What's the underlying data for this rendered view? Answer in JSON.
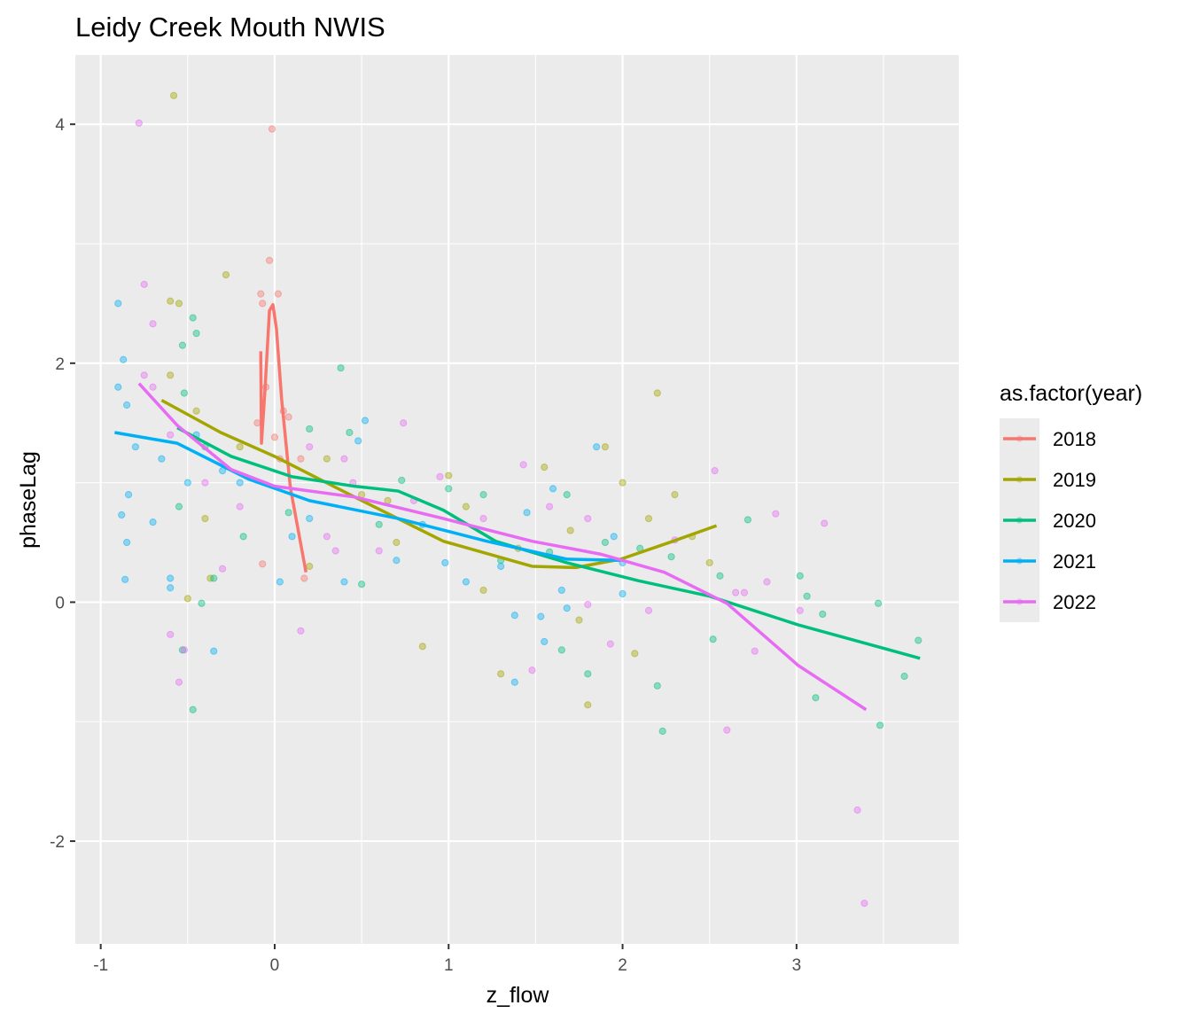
{
  "chart_data": {
    "type": "scatter",
    "title": "Leidy Creek Mouth NWIS",
    "xlabel": "z_flow",
    "ylabel": "phaseLag",
    "xlim": [
      -1.146,
      3.933
    ],
    "ylim": [
      -2.86,
      4.58
    ],
    "xticks": [
      -1,
      0,
      1,
      2,
      3
    ],
    "yticks": [
      -2,
      0,
      2,
      4
    ],
    "grid": true,
    "legend": {
      "title": "as.factor(year)",
      "placement": "right"
    },
    "series": [
      {
        "name": "2018",
        "color": "#F8766D",
        "points": [
          [
            -0.015,
            3.96
          ],
          [
            -0.03,
            2.86
          ],
          [
            -0.08,
            2.58
          ],
          [
            0.02,
            2.58
          ],
          [
            -0.07,
            2.5
          ],
          [
            0.17,
            0.2
          ],
          [
            -0.07,
            0.32
          ],
          [
            0.08,
            1.55
          ],
          [
            0.05,
            1.6
          ],
          [
            -0.1,
            1.5
          ],
          [
            0.0,
            1.38
          ],
          [
            0.03,
            1.2
          ],
          [
            0.15,
            1.2
          ],
          [
            -0.05,
            1.8
          ]
        ],
        "smooth": [
          [
            -0.08,
            2.1
          ],
          [
            -0.076,
            1.33
          ],
          [
            -0.056,
            1.77
          ],
          [
            -0.03,
            2.44
          ],
          [
            -0.01,
            2.49
          ],
          [
            0.01,
            2.29
          ],
          [
            0.04,
            1.7
          ],
          [
            0.09,
            0.96
          ],
          [
            0.18,
            0.25
          ]
        ]
      },
      {
        "name": "2019",
        "color": "#A3A500",
        "points": [
          [
            -0.58,
            4.24
          ],
          [
            -0.28,
            2.74
          ],
          [
            -0.6,
            2.52
          ],
          [
            -0.55,
            2.5
          ],
          [
            2.2,
            1.75
          ],
          [
            1.9,
            1.3
          ],
          [
            2.0,
            1.0
          ],
          [
            1.55,
            1.13
          ],
          [
            0.85,
            -0.37
          ],
          [
            1.8,
            -0.86
          ],
          [
            2.07,
            -0.43
          ],
          [
            1.3,
            -0.6
          ],
          [
            2.5,
            0.33
          ],
          [
            2.3,
            0.9
          ],
          [
            2.15,
            0.7
          ],
          [
            1.2,
            0.1
          ],
          [
            1.0,
            1.06
          ],
          [
            0.7,
            0.5
          ],
          [
            -0.4,
            0.7
          ],
          [
            -0.5,
            0.03
          ],
          [
            -0.37,
            0.2
          ],
          [
            0.2,
            0.3
          ],
          [
            1.75,
            -0.15
          ],
          [
            1.1,
            0.8
          ],
          [
            -0.2,
            1.3
          ],
          [
            -0.6,
            1.9
          ],
          [
            -0.45,
            1.6
          ],
          [
            0.3,
            1.2
          ],
          [
            0.5,
            0.9
          ],
          [
            0.65,
            0.85
          ],
          [
            1.4,
            0.45
          ],
          [
            1.7,
            0.6
          ],
          [
            2.4,
            0.55
          ]
        ],
        "smooth": [
          [
            -0.65,
            1.69
          ],
          [
            -0.31,
            1.42
          ],
          [
            0,
            1.22
          ],
          [
            0.46,
            0.88
          ],
          [
            0.97,
            0.51
          ],
          [
            1.48,
            0.3
          ],
          [
            1.73,
            0.29
          ],
          [
            1.99,
            0.36
          ],
          [
            2.29,
            0.51
          ],
          [
            2.54,
            0.64
          ]
        ]
      },
      {
        "name": "2020",
        "color": "#00BF7D",
        "points": [
          [
            0.38,
            1.96
          ],
          [
            -0.47,
            -0.9
          ],
          [
            -0.42,
            -0.01
          ],
          [
            -0.53,
            -0.4
          ],
          [
            2.2,
            -0.7
          ],
          [
            2.23,
            -1.08
          ],
          [
            3.48,
            -1.03
          ],
          [
            3.62,
            -0.62
          ],
          [
            3.7,
            -0.32
          ],
          [
            3.47,
            -0.01
          ],
          [
            3.02,
            0.22
          ],
          [
            3.06,
            0.05
          ],
          [
            3.15,
            -0.1
          ],
          [
            3.11,
            -0.8
          ],
          [
            2.72,
            0.69
          ],
          [
            2.52,
            -0.31
          ],
          [
            2.56,
            0.22
          ],
          [
            1.68,
            0.9
          ],
          [
            1.2,
            0.9
          ],
          [
            1.0,
            0.95
          ],
          [
            0.73,
            1.02
          ],
          [
            0.43,
            1.42
          ],
          [
            0.2,
            1.45
          ],
          [
            -0.47,
            2.38
          ],
          [
            -0.53,
            2.15
          ],
          [
            -0.45,
            2.25
          ],
          [
            -0.52,
            1.75
          ],
          [
            -0.4,
            1.3
          ],
          [
            1.8,
            -0.6
          ],
          [
            1.65,
            -0.4
          ],
          [
            0.5,
            0.15
          ],
          [
            -0.35,
            0.2
          ],
          [
            -0.55,
            0.8
          ],
          [
            -0.18,
            0.55
          ],
          [
            0.08,
            0.75
          ],
          [
            0.6,
            0.65
          ],
          [
            1.3,
            0.35
          ],
          [
            1.9,
            0.5
          ],
          [
            2.1,
            0.45
          ],
          [
            2.28,
            0.38
          ],
          [
            1.58,
            0.42
          ]
        ],
        "smooth": [
          [
            -0.56,
            1.46
          ],
          [
            -0.25,
            1.22
          ],
          [
            0.1,
            1.05
          ],
          [
            0.46,
            0.97
          ],
          [
            0.71,
            0.93
          ],
          [
            0.97,
            0.77
          ],
          [
            1.27,
            0.51
          ],
          [
            1.68,
            0.33
          ],
          [
            2.09,
            0.18
          ],
          [
            2.5,
            0.05
          ],
          [
            3.01,
            -0.19
          ],
          [
            3.71,
            -0.47
          ]
        ]
      },
      {
        "name": "2021",
        "color": "#00B0F6",
        "points": [
          [
            -0.9,
            2.5
          ],
          [
            -0.87,
            2.03
          ],
          [
            -0.86,
            0.19
          ],
          [
            -0.6,
            0.2
          ],
          [
            -0.6,
            0.12
          ],
          [
            -0.35,
            -0.41
          ],
          [
            0.03,
            0.17
          ],
          [
            0.4,
            0.17
          ],
          [
            0.98,
            0.33
          ],
          [
            1.1,
            0.17
          ],
          [
            1.38,
            -0.11
          ],
          [
            1.38,
            -0.67
          ],
          [
            1.53,
            -0.12
          ],
          [
            1.55,
            -0.33
          ],
          [
            1.65,
            0.1
          ],
          [
            1.68,
            -0.05
          ],
          [
            1.6,
            0.95
          ],
          [
            1.3,
            0.3
          ],
          [
            1.85,
            1.3
          ],
          [
            1.95,
            0.55
          ],
          [
            2.0,
            0.07
          ],
          [
            0.52,
            1.52
          ],
          [
            0.48,
            1.35
          ],
          [
            -0.85,
            0.5
          ],
          [
            -0.88,
            0.73
          ],
          [
            -0.84,
            0.9
          ],
          [
            -0.8,
            1.3
          ],
          [
            -0.7,
            0.67
          ],
          [
            -0.85,
            1.65
          ],
          [
            -0.9,
            1.8
          ],
          [
            -0.65,
            1.2
          ],
          [
            -0.5,
            1.0
          ],
          [
            -0.45,
            1.4
          ],
          [
            -0.3,
            1.1
          ],
          [
            -0.2,
            1.0
          ],
          [
            0.1,
            0.55
          ],
          [
            0.2,
            0.7
          ],
          [
            0.7,
            0.35
          ],
          [
            0.85,
            0.65
          ],
          [
            1.45,
            0.75
          ],
          [
            2.0,
            0.33
          ]
        ],
        "smooth": [
          [
            -0.92,
            1.42
          ],
          [
            -0.56,
            1.33
          ],
          [
            -0.15,
            1.03
          ],
          [
            0.2,
            0.85
          ],
          [
            0.71,
            0.7
          ],
          [
            1.22,
            0.51
          ],
          [
            1.68,
            0.36
          ],
          [
            1.99,
            0.35
          ]
        ]
      },
      {
        "name": "2022",
        "color": "#E76BF3",
        "points": [
          [
            -0.78,
            4.01
          ],
          [
            -0.75,
            2.66
          ],
          [
            -0.7,
            2.33
          ],
          [
            -0.6,
            -0.27
          ],
          [
            -0.55,
            -0.67
          ],
          [
            -0.52,
            -0.4
          ],
          [
            -0.3,
            0.28
          ],
          [
            0.15,
            -0.24
          ],
          [
            3.35,
            -1.74
          ],
          [
            3.39,
            -2.52
          ],
          [
            2.6,
            -1.07
          ],
          [
            2.76,
            -0.41
          ],
          [
            3.02,
            -0.07
          ],
          [
            2.88,
            0.74
          ],
          [
            3.16,
            0.66
          ],
          [
            2.83,
            0.17
          ],
          [
            2.53,
            1.1
          ],
          [
            2.65,
            0.08
          ],
          [
            2.7,
            0.08
          ],
          [
            1.48,
            -0.57
          ],
          [
            1.93,
            -0.35
          ],
          [
            1.43,
            1.15
          ],
          [
            0.74,
            1.5
          ],
          [
            0.95,
            1.05
          ],
          [
            1.8,
            -0.02
          ],
          [
            2.15,
            -0.07
          ],
          [
            1.58,
            0.8
          ],
          [
            0.6,
            0.43
          ],
          [
            0.35,
            0.43
          ],
          [
            -0.75,
            1.9
          ],
          [
            -0.7,
            1.8
          ],
          [
            -0.6,
            1.4
          ],
          [
            -0.4,
            1.0
          ],
          [
            -0.2,
            0.8
          ],
          [
            0.2,
            1.3
          ],
          [
            0.4,
            1.2
          ],
          [
            0.8,
            0.85
          ],
          [
            1.2,
            0.7
          ],
          [
            1.8,
            0.7
          ],
          [
            2.3,
            0.52
          ],
          [
            0.45,
            1.0
          ],
          [
            0.3,
            0.55
          ]
        ],
        "smooth": [
          [
            -0.78,
            1.83
          ],
          [
            -0.56,
            1.48
          ],
          [
            -0.25,
            1.11
          ],
          [
            0,
            0.97
          ],
          [
            0.46,
            0.88
          ],
          [
            0.97,
            0.7
          ],
          [
            1.48,
            0.51
          ],
          [
            1.88,
            0.4
          ],
          [
            2.24,
            0.25
          ],
          [
            2.6,
            -0.01
          ],
          [
            3.01,
            -0.53
          ],
          [
            3.4,
            -0.9
          ]
        ]
      }
    ]
  }
}
